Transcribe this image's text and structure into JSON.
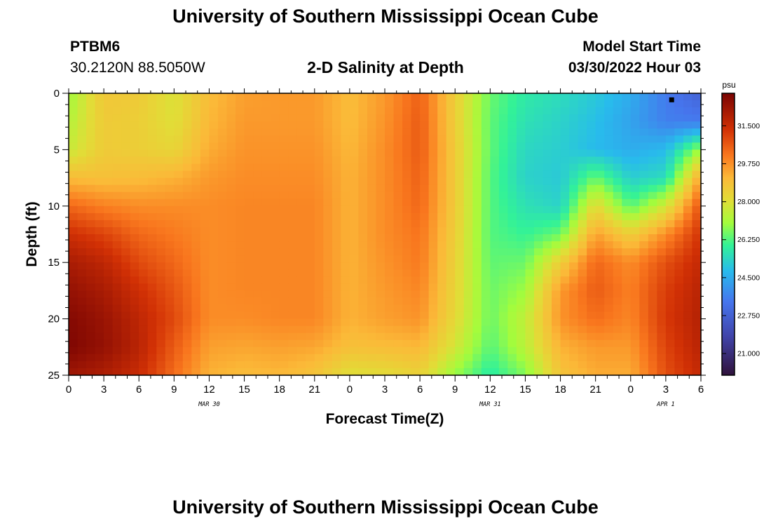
{
  "header": {
    "title": "University of Southern Mississippi Ocean Cube",
    "station": "PTBM6",
    "coords": "30.2120N  88.5050W",
    "subtitle": "2-D Salinity at Depth",
    "model_start_label": "Model Start Time",
    "model_start_value": "03/30/2022 Hour 03"
  },
  "footer": {
    "title": "University of Southern Mississippi Ocean Cube"
  },
  "chart_data": {
    "type": "heatmap",
    "xlabel": "Forecast Time(Z)",
    "ylabel": "Depth (ft)",
    "x_ticks": [
      "0",
      "3",
      "6",
      "9",
      "12",
      "15",
      "18",
      "21",
      "0",
      "3",
      "6",
      "9",
      "12",
      "15",
      "18",
      "21",
      "0",
      "3",
      "6"
    ],
    "x_range_hours": [
      0,
      54
    ],
    "date_labels": [
      {
        "text": "MAR 30",
        "hour": 12
      },
      {
        "text": "MAR 31",
        "hour": 36
      },
      {
        "text": "APR 1",
        "hour": 51
      }
    ],
    "y_ticks": [
      0,
      5,
      10,
      15,
      20,
      25
    ],
    "ylim": [
      0,
      25
    ],
    "colorbar": {
      "unit": "psu",
      "ticks": [
        "21.000",
        "22.750",
        "24.500",
        "26.250",
        "28.000",
        "29.750",
        "31.500"
      ],
      "range": [
        20.0,
        33.0
      ]
    },
    "marker": {
      "hour": 51.5,
      "depth": 0.3
    },
    "depths_ft": [
      0,
      2.5,
      5,
      7.5,
      10,
      12.5,
      15,
      17.5,
      20,
      22.5,
      25
    ],
    "hours": [
      0,
      3,
      6,
      9,
      12,
      15,
      18,
      21,
      24,
      27,
      30,
      33,
      36,
      39,
      42,
      45,
      48,
      51,
      54
    ],
    "salinity": [
      [
        27.0,
        28.7,
        28.6,
        27.9,
        29.0,
        29.5,
        29.6,
        29.6,
        29.0,
        29.6,
        30.5,
        28.5,
        26.5,
        25.8,
        25.5,
        25.1,
        24.5,
        23.5,
        22.8
      ],
      [
        27.3,
        28.6,
        28.5,
        28.0,
        29.1,
        29.6,
        29.6,
        29.6,
        29.0,
        29.7,
        30.6,
        28.5,
        26.4,
        25.6,
        25.3,
        24.9,
        24.3,
        23.6,
        23.5
      ],
      [
        27.6,
        28.6,
        28.5,
        28.3,
        29.3,
        29.7,
        29.7,
        29.7,
        29.1,
        29.8,
        30.6,
        28.6,
        26.4,
        25.4,
        25.2,
        24.8,
        24.5,
        24.8,
        27.0
      ],
      [
        29.0,
        28.9,
        29.0,
        29.2,
        29.6,
        29.8,
        29.8,
        29.8,
        29.2,
        29.8,
        30.5,
        28.6,
        26.3,
        25.3,
        25.1,
        26.5,
        25.2,
        25.5,
        29.5
      ],
      [
        30.4,
        30.0,
        29.8,
        29.8,
        29.8,
        29.9,
        29.9,
        29.9,
        29.2,
        29.8,
        30.4,
        28.6,
        26.3,
        25.6,
        25.3,
        28.2,
        26.3,
        27.8,
        30.8
      ],
      [
        31.4,
        31.0,
        30.4,
        30.1,
        29.8,
        29.9,
        29.9,
        29.9,
        29.2,
        29.8,
        30.2,
        28.5,
        26.3,
        26.0,
        26.5,
        29.5,
        28.5,
        29.8,
        31.3
      ],
      [
        32.1,
        31.7,
        30.9,
        30.4,
        29.8,
        29.9,
        29.9,
        29.9,
        29.2,
        29.7,
        30.1,
        28.4,
        26.4,
        26.5,
        28.5,
        30.4,
        29.8,
        30.8,
        31.6
      ],
      [
        32.5,
        32.1,
        31.4,
        30.7,
        29.8,
        29.9,
        29.9,
        29.9,
        29.2,
        29.6,
        29.9,
        28.3,
        26.5,
        27.0,
        29.6,
        30.6,
        30.0,
        31.1,
        31.8
      ],
      [
        32.8,
        32.4,
        31.7,
        30.9,
        29.8,
        29.8,
        29.9,
        29.9,
        29.2,
        29.5,
        29.7,
        28.2,
        26.5,
        27.5,
        29.7,
        30.3,
        29.9,
        31.2,
        31.9
      ],
      [
        32.9,
        32.5,
        31.8,
        30.6,
        29.5,
        29.4,
        29.5,
        29.4,
        28.9,
        29.0,
        29.1,
        27.8,
        26.3,
        27.4,
        29.2,
        29.6,
        29.6,
        31.0,
        31.8
      ],
      [
        32.3,
        32.0,
        31.5,
        30.3,
        29.2,
        29.0,
        29.1,
        28.8,
        28.0,
        28.1,
        28.4,
        26.9,
        25.8,
        26.7,
        28.8,
        29.3,
        29.3,
        30.8,
        31.6
      ]
    ]
  }
}
